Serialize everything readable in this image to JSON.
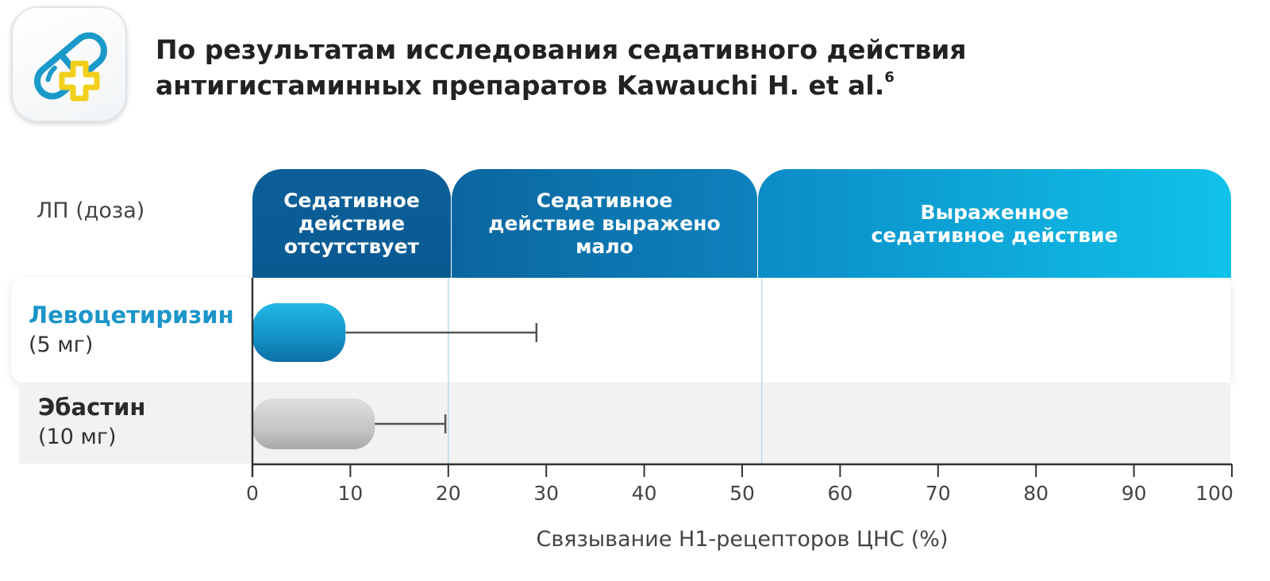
{
  "header": {
    "title_line1": "По результатам исследования седативного действия",
    "title_line2": "антигистаминных препаратов Kawauchi H. et al.",
    "title_sup": "6",
    "icon": "pill-plus-icon"
  },
  "table_header": "ЛП (доза)",
  "zones": [
    {
      "label": "Седативное действие отсутствует",
      "lines": [
        "Седативное",
        "действие",
        "отсутствует"
      ],
      "from": 0,
      "to": 20
    },
    {
      "label": "Седативное действие выражено мало",
      "lines": [
        "Седативное",
        "действие выражено",
        "мало"
      ],
      "from": 20,
      "to": 52
    },
    {
      "label": "Выраженное седативное действие",
      "lines": [
        "Выраженное",
        "седативное действие"
      ],
      "from": 52,
      "to": 100
    }
  ],
  "rows": [
    {
      "name": "Левоцетиризин",
      "dose": "(5 мг)"
    },
    {
      "name": "Эбастин",
      "dose": "(10 мг)"
    }
  ],
  "colors": {
    "zone_dark": "#0a5a92",
    "zone_mid": "#0d7fba",
    "zone_light": "#10c2ea",
    "levocetirizine": "#1c95c8",
    "ebastine": "#c4c4c4",
    "errorbar": "#555555"
  },
  "chart_data": {
    "type": "bar",
    "orientation": "horizontal",
    "categories": [
      "Левоцетиризин (5 мг)",
      "Эбастин (10 мг)"
    ],
    "values": [
      9.5,
      12.5
    ],
    "error_upper": [
      29,
      19.7
    ],
    "xlabel": "Связывание H1-рецепторов ЦНС (%)",
    "xlim": [
      0,
      100
    ],
    "xticks": [
      "0",
      "10",
      "20",
      "30",
      "40",
      "50",
      "60",
      "70",
      "80",
      "90",
      "100"
    ],
    "grid": false
  }
}
